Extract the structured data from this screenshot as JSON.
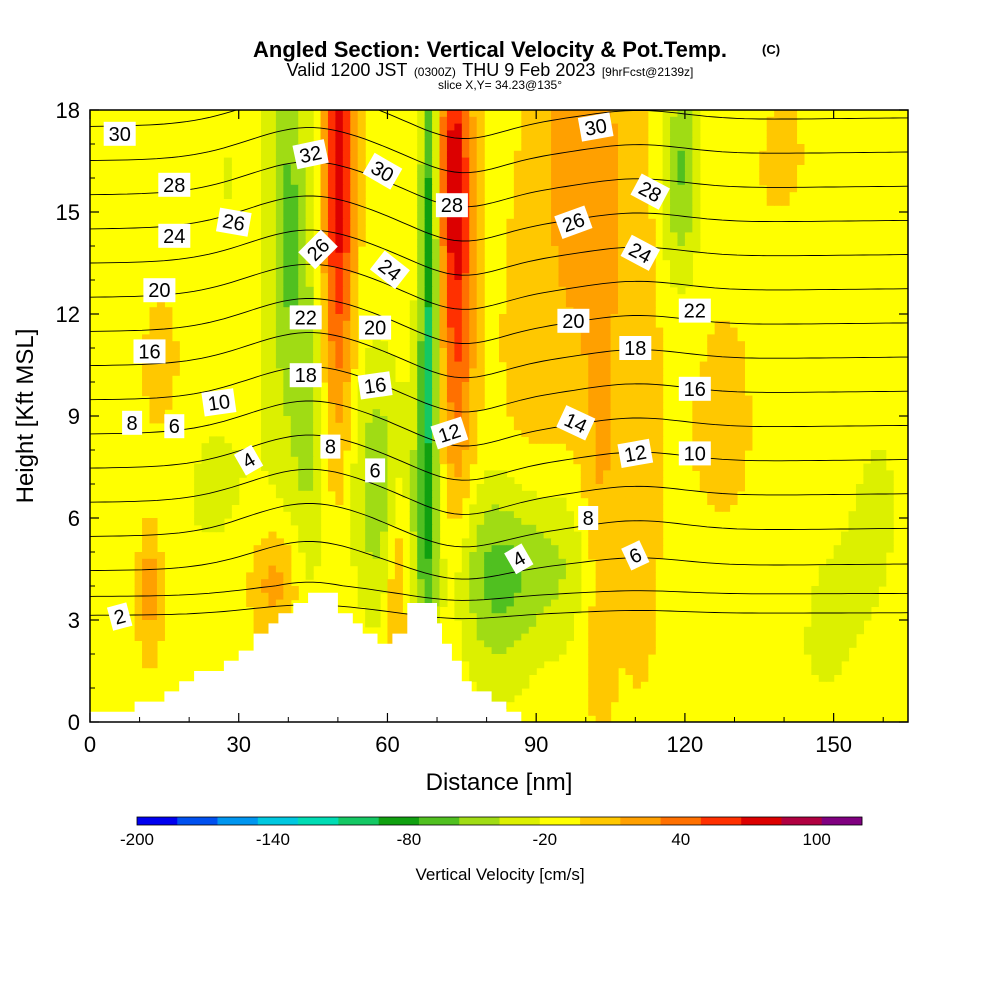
{
  "header": {
    "title_main": "Angled Section: Vertical Velocity & Pot.Temp.",
    "title_mark": "(C)",
    "valid_a": "Valid 1200 JST",
    "valid_utc": "(0300Z)",
    "valid_b": "THU 9 Feb 2023",
    "valid_fcst": "[9hrFcst@2139z]",
    "slice": "slice X,Y= 34.23@135°"
  },
  "chart_data": {
    "type": "heatmap",
    "xlabel": "Distance [nm]",
    "ylabel": "Height [Kft MSL]",
    "xlim": [
      0,
      165
    ],
    "ylim": [
      0,
      18
    ],
    "x_ticks": [
      0,
      30,
      60,
      90,
      120,
      150
    ],
    "y_ticks": [
      0,
      3,
      6,
      9,
      12,
      15,
      18
    ],
    "grid": false,
    "colorbar": {
      "label": "Vertical Velocity [cm/s]",
      "min": -200,
      "max": 120,
      "step": 20,
      "tick_values": [
        -200,
        -140,
        -80,
        -20,
        40,
        100
      ],
      "colors": [
        "#0000f0",
        "#0050f0",
        "#0096f0",
        "#00c8e0",
        "#00dcb4",
        "#14c864",
        "#10a010",
        "#50c020",
        "#a0dc14",
        "#dcf000",
        "#ffff00",
        "#ffc800",
        "#ffa000",
        "#ff7000",
        "#ff3000",
        "#dc0000",
        "#b00040",
        "#800080"
      ]
    },
    "background_value_band": "0 to 20",
    "updraft_columns": [
      {
        "x": 50,
        "value": 80
      },
      {
        "x": 74,
        "value": 80
      },
      {
        "x": 103,
        "value": 40
      },
      {
        "x": 35,
        "value": 40
      },
      {
        "x": 14,
        "value": 40
      }
    ],
    "downdraft_columns": [
      {
        "x": 68,
        "value": -80
      },
      {
        "x": 40,
        "value": -60
      },
      {
        "x": 118,
        "value": -60
      }
    ],
    "terrain_profile": {
      "x": [
        0,
        9,
        9,
        15,
        15,
        18,
        18,
        21,
        21,
        27,
        27,
        30,
        30,
        33,
        33,
        36,
        36,
        38,
        38,
        41,
        41,
        44,
        44,
        50,
        50,
        53,
        53,
        55,
        55,
        58,
        58,
        61,
        61,
        64,
        64,
        70,
        70,
        71,
        71,
        73,
        73,
        75,
        75,
        77,
        77,
        81,
        81,
        84,
        84,
        87,
        87,
        165
      ],
      "height_kft": [
        0.3,
        0.3,
        0.6,
        0.6,
        0.9,
        0.9,
        1.2,
        1.2,
        1.5,
        1.5,
        1.8,
        1.8,
        2.1,
        2.1,
        2.6,
        2.6,
        2.9,
        2.9,
        3.2,
        3.2,
        3.5,
        3.5,
        3.8,
        3.8,
        3.2,
        3.2,
        2.9,
        2.9,
        2.6,
        2.6,
        2.3,
        2.3,
        2.6,
        2.6,
        3.5,
        3.5,
        2.9,
        2.9,
        2.3,
        2.3,
        1.8,
        1.8,
        1.2,
        1.2,
        0.9,
        0.9,
        0.6,
        0.6,
        0.3,
        0.3,
        0,
        0
      ]
    },
    "contour_labels": [
      {
        "text": "30",
        "x": 6,
        "y": 17.3,
        "rot": 0
      },
      {
        "text": "28",
        "x": 17,
        "y": 15.8,
        "rot": 0
      },
      {
        "text": "26",
        "x": 29,
        "y": 14.7,
        "rot": 10
      },
      {
        "text": "24",
        "x": 17,
        "y": 14.3,
        "rot": 0
      },
      {
        "text": "20",
        "x": 14,
        "y": 12.7,
        "rot": 0
      },
      {
        "text": "16",
        "x": 12,
        "y": 10.9,
        "rot": 0
      },
      {
        "text": "8",
        "x": 8.5,
        "y": 8.8,
        "rot": 0
      },
      {
        "text": "6",
        "x": 17,
        "y": 8.7,
        "rot": 0
      },
      {
        "text": "10",
        "x": 26,
        "y": 9.4,
        "rot": -8
      },
      {
        "text": "4",
        "x": 32,
        "y": 7.7,
        "rot": -30
      },
      {
        "text": "2",
        "x": 6,
        "y": 3.1,
        "rot": -15
      },
      {
        "text": "32",
        "x": 44.5,
        "y": 16.7,
        "rot": -12
      },
      {
        "text": "26",
        "x": 46,
        "y": 13.9,
        "rot": -45
      },
      {
        "text": "22",
        "x": 43.5,
        "y": 11.9,
        "rot": 0
      },
      {
        "text": "18",
        "x": 43.5,
        "y": 10.2,
        "rot": 0
      },
      {
        "text": "8",
        "x": 48.5,
        "y": 8.1,
        "rot": 0
      },
      {
        "text": "30",
        "x": 59,
        "y": 16.2,
        "rot": 30
      },
      {
        "text": "24",
        "x": 60.5,
        "y": 13.3,
        "rot": 38
      },
      {
        "text": "20",
        "x": 57.5,
        "y": 11.6,
        "rot": 0
      },
      {
        "text": "16",
        "x": 57.5,
        "y": 9.9,
        "rot": -8
      },
      {
        "text": "6",
        "x": 57.5,
        "y": 7.4,
        "rot": 0
      },
      {
        "text": "12",
        "x": 72.5,
        "y": 8.5,
        "rot": -18
      },
      {
        "text": "28",
        "x": 73,
        "y": 15.2,
        "rot": 0
      },
      {
        "text": "4",
        "x": 86.5,
        "y": 4.8,
        "rot": -30
      },
      {
        "text": "30",
        "x": 102,
        "y": 17.5,
        "rot": -10
      },
      {
        "text": "26",
        "x": 97.5,
        "y": 14.7,
        "rot": -20
      },
      {
        "text": "20",
        "x": 97.5,
        "y": 11.8,
        "rot": 0
      },
      {
        "text": "14",
        "x": 98,
        "y": 8.8,
        "rot": 25
      },
      {
        "text": "8",
        "x": 100.5,
        "y": 6,
        "rot": 0
      },
      {
        "text": "28",
        "x": 113,
        "y": 15.6,
        "rot": 28
      },
      {
        "text": "24",
        "x": 111,
        "y": 13.8,
        "rot": 28
      },
      {
        "text": "18",
        "x": 110,
        "y": 11,
        "rot": 0
      },
      {
        "text": "12",
        "x": 110,
        "y": 7.9,
        "rot": -10
      },
      {
        "text": "6",
        "x": 110,
        "y": 4.9,
        "rot": -25
      },
      {
        "text": "22",
        "x": 122,
        "y": 12.1,
        "rot": 0
      },
      {
        "text": "16",
        "x": 122,
        "y": 9.8,
        "rot": 0
      },
      {
        "text": "10",
        "x": 122,
        "y": 7.9,
        "rot": 0
      }
    ]
  }
}
